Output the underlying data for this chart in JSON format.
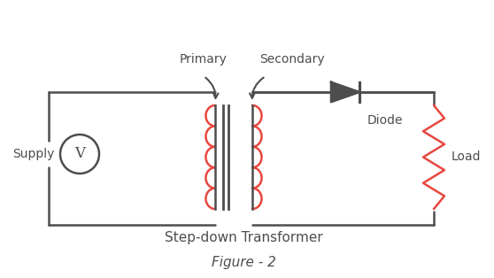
{
  "bg_color": "#ffffff",
  "line_color": "#4d4d4d",
  "coil_color": "#e8473f",
  "text_color": "#4d4d4d",
  "title": "Figure - 2",
  "transformer_label": "Step-down Transformer",
  "primary_label": "Primary",
  "secondary_label": "Secondary",
  "diode_label": "Diode",
  "supply_label": "Supply",
  "load_label": "Load",
  "voltage_label": "V"
}
